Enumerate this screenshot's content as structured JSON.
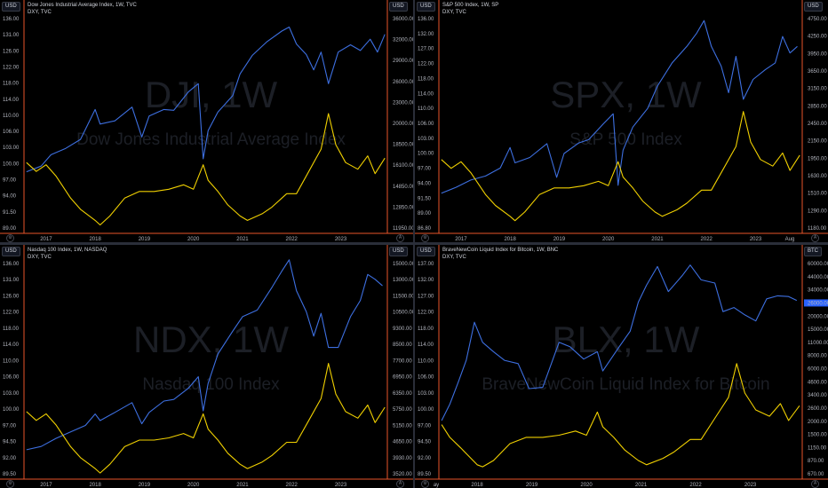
{
  "colors": {
    "primary": "#3d6fe0",
    "dxy": "#f0d000",
    "axis_border": "#e8552a",
    "tick_text": "#b2b5be",
    "watermark": "#1c1f26",
    "highlight_box": "#2962ff"
  },
  "usd_label": "USD",
  "chart_data": [
    {
      "type": "line",
      "title": "Dow Jones Industrial Average Index, 1W, TVC",
      "subtitle": "DXY, TVC",
      "watermark_big": "DJI, 1W",
      "watermark_small": "Dow Jones Industrial Average Index",
      "left_axis_label": "USD",
      "right_axis_label": "USD",
      "x_ticks": [
        "2017",
        "2018",
        "2019",
        "2020",
        "2021",
        "2022",
        "2023"
      ],
      "left_ticks": [
        "136.00",
        "131.00",
        "126.00",
        "122.00",
        "118.00",
        "114.00",
        "110.00",
        "106.00",
        "103.00",
        "100.00",
        "97.00",
        "94.00",
        "91.50",
        "89.00"
      ],
      "right_ticks": [
        "36000.00",
        "32000.00",
        "29000.00",
        "26000.00",
        "23000.00",
        "20000.00",
        "18500.00",
        "16100.00",
        "14850.00",
        "12850.00",
        "11950.00"
      ],
      "series": [
        {
          "name": "DJI",
          "scale": "right",
          "color": "#3d6fe0",
          "ylim": [
            11000,
            38000
          ],
          "x": [
            2016.6,
            2016.9,
            2017.1,
            2017.4,
            2017.7,
            2018.0,
            2018.1,
            2018.4,
            2018.75,
            2018.95,
            2019.1,
            2019.4,
            2019.6,
            2019.9,
            2020.1,
            2020.2,
            2020.3,
            2020.5,
            2020.8,
            2020.95,
            2021.2,
            2021.5,
            2021.8,
            2021.95,
            2022.1,
            2022.3,
            2022.45,
            2022.6,
            2022.75,
            2022.95,
            2023.2,
            2023.4,
            2023.6,
            2023.75,
            2023.9
          ],
          "values": [
            18400,
            19100,
            20500,
            21300,
            22400,
            26100,
            24300,
            24700,
            26400,
            22700,
            25300,
            26100,
            26000,
            28300,
            29300,
            20000,
            23500,
            25800,
            27800,
            30500,
            32800,
            34500,
            35800,
            36300,
            34200,
            32900,
            31000,
            33200,
            29300,
            33200,
            34100,
            33400,
            34800,
            33200,
            35400
          ]
        },
        {
          "name": "DXY",
          "scale": "left",
          "color": "#f0d000",
          "ylim": [
            87.5,
            136.5
          ],
          "x": [
            2016.6,
            2016.8,
            2017.0,
            2017.2,
            2017.5,
            2017.7,
            2018.0,
            2018.1,
            2018.3,
            2018.6,
            2018.9,
            2019.2,
            2019.5,
            2019.8,
            2020.0,
            2020.2,
            2020.3,
            2020.5,
            2020.7,
            2020.95,
            2021.1,
            2021.4,
            2021.6,
            2021.9,
            2022.1,
            2022.35,
            2022.6,
            2022.75,
            2022.9,
            2023.1,
            2023.35,
            2023.55,
            2023.7,
            2023.9
          ],
          "values": [
            103.0,
            101.0,
            102.5,
            100.0,
            95.0,
            92.5,
            90.0,
            89.0,
            91.0,
            95.0,
            96.5,
            96.5,
            97.0,
            98.0,
            97.0,
            102.5,
            99.0,
            96.5,
            93.5,
            91.0,
            90.0,
            91.5,
            93.0,
            96.0,
            96.0,
            101.0,
            106.0,
            114.0,
            107.0,
            103.0,
            101.5,
            104.5,
            100.5,
            104.0
          ]
        }
      ]
    },
    {
      "type": "line",
      "title": "S&P 500 Index, 1W, SP",
      "subtitle": "DXY, TVC",
      "watermark_big": "SPX, 1W",
      "watermark_small": "S&P 500 Index",
      "left_axis_label": "USD",
      "right_axis_label": "USD",
      "x_ticks": [
        "2017",
        "2018",
        "2019",
        "2020",
        "2021",
        "2022",
        "2023",
        "Aug"
      ],
      "left_ticks": [
        "136.00",
        "132.00",
        "127.00",
        "122.00",
        "118.00",
        "114.00",
        "110.00",
        "106.00",
        "103.00",
        "100.00",
        "97.00",
        "94.00",
        "91.50",
        "89.00",
        "86.80"
      ],
      "right_ticks": [
        "4750.00",
        "4250.00",
        "3950.00",
        "3650.00",
        "3150.00",
        "2850.00",
        "2450.00",
        "2150.00",
        "1950.00",
        "1630.00",
        "1510.00",
        "1290.00",
        "1180.00"
      ],
      "series": [
        {
          "name": "SPX",
          "scale": "right",
          "color": "#3d6fe0",
          "ylim": [
            1600,
            4900
          ],
          "x": [
            2016.6,
            2016.9,
            2017.2,
            2017.5,
            2017.8,
            2018.0,
            2018.1,
            2018.4,
            2018.75,
            2018.95,
            2019.1,
            2019.4,
            2019.6,
            2019.9,
            2020.1,
            2020.2,
            2020.3,
            2020.5,
            2020.8,
            2021.0,
            2021.3,
            2021.6,
            2021.8,
            2021.95,
            2022.1,
            2022.3,
            2022.45,
            2022.6,
            2022.75,
            2022.95,
            2023.2,
            2023.4,
            2023.55,
            2023.7,
            2023.85
          ],
          "values": [
            2180,
            2270,
            2380,
            2440,
            2560,
            2870,
            2640,
            2720,
            2930,
            2420,
            2780,
            2940,
            2990,
            3230,
            3380,
            2300,
            2830,
            3180,
            3460,
            3800,
            4150,
            4400,
            4600,
            4790,
            4400,
            4100,
            3700,
            4250,
            3600,
            3900,
            4050,
            4150,
            4550,
            4300,
            4400
          ]
        },
        {
          "name": "DXY",
          "scale": "left",
          "color": "#f0d000",
          "ylim": [
            86.5,
            136.5
          ],
          "x": [
            2016.6,
            2016.8,
            2017.0,
            2017.2,
            2017.5,
            2017.7,
            2018.0,
            2018.1,
            2018.3,
            2018.6,
            2018.9,
            2019.2,
            2019.5,
            2019.8,
            2020.0,
            2020.2,
            2020.3,
            2020.5,
            2020.7,
            2020.95,
            2021.1,
            2021.4,
            2021.6,
            2021.9,
            2022.1,
            2022.35,
            2022.6,
            2022.75,
            2022.9,
            2023.1,
            2023.35,
            2023.55,
            2023.7,
            2023.9
          ],
          "values": [
            103.0,
            101.0,
            102.5,
            100.0,
            95.0,
            92.5,
            90.0,
            89.0,
            91.0,
            95.0,
            96.5,
            96.5,
            97.0,
            98.0,
            97.0,
            102.5,
            99.0,
            96.5,
            93.5,
            91.0,
            90.0,
            91.5,
            93.0,
            96.0,
            96.0,
            101.0,
            106.0,
            114.0,
            107.0,
            103.0,
            101.5,
            104.5,
            100.5,
            104.0
          ]
        }
      ]
    },
    {
      "type": "line",
      "title": "Nasdaq 100 Index, 1W, NASDAQ",
      "subtitle": "DXY, TVC",
      "watermark_big": "NDX, 1W",
      "watermark_small": "Nasdaq 100 Index",
      "left_axis_label": "USD",
      "right_axis_label": "USD",
      "x_ticks": [
        "2017",
        "2018",
        "2019",
        "2020",
        "2021",
        "2022",
        "2023"
      ],
      "left_ticks": [
        "136.00",
        "131.00",
        "126.00",
        "122.00",
        "118.00",
        "114.00",
        "110.00",
        "106.00",
        "103.00",
        "100.00",
        "97.00",
        "94.50",
        "92.00",
        "89.50"
      ],
      "right_ticks": [
        "15000.00",
        "13000.00",
        "11500.00",
        "10500.00",
        "9300.00",
        "8500.00",
        "7700.00",
        "6950.00",
        "6350.00",
        "5750.00",
        "5150.00",
        "4650.00",
        "3930.00",
        "3520.00"
      ],
      "series": [
        {
          "name": "NDX",
          "scale": "right",
          "color": "#3d6fe0",
          "ylim": [
            3000,
            16500
          ],
          "x": [
            2016.6,
            2016.9,
            2017.2,
            2017.5,
            2017.8,
            2018.0,
            2018.1,
            2018.4,
            2018.75,
            2018.95,
            2019.1,
            2019.4,
            2019.6,
            2019.9,
            2020.1,
            2020.2,
            2020.3,
            2020.5,
            2020.8,
            2021.0,
            2021.3,
            2021.6,
            2021.8,
            2021.95,
            2022.1,
            2022.3,
            2022.45,
            2022.6,
            2022.75,
            2022.95,
            2023.2,
            2023.4,
            2023.55,
            2023.7,
            2023.85
          ],
          "values": [
            4700,
            4900,
            5400,
            5800,
            6200,
            6900,
            6500,
            7000,
            7600,
            6300,
            7000,
            7700,
            7800,
            8500,
            9200,
            7100,
            8800,
            10600,
            12000,
            12900,
            13300,
            14700,
            15700,
            16400,
            14500,
            13200,
            11700,
            13100,
            11000,
            11000,
            12900,
            13900,
            15500,
            15200,
            14800
          ]
        },
        {
          "name": "DXY",
          "scale": "left",
          "color": "#f0d000",
          "ylim": [
            88,
            138
          ],
          "x": [
            2016.6,
            2016.8,
            2017.0,
            2017.2,
            2017.5,
            2017.7,
            2018.0,
            2018.1,
            2018.3,
            2018.6,
            2018.9,
            2019.2,
            2019.5,
            2019.8,
            2020.0,
            2020.2,
            2020.3,
            2020.5,
            2020.7,
            2020.95,
            2021.1,
            2021.4,
            2021.6,
            2021.9,
            2022.1,
            2022.35,
            2022.6,
            2022.75,
            2022.9,
            2023.1,
            2023.35,
            2023.55,
            2023.7,
            2023.9
          ],
          "values": [
            103.0,
            101.0,
            102.5,
            100.0,
            95.0,
            92.5,
            90.0,
            89.0,
            91.0,
            95.0,
            96.5,
            96.5,
            97.0,
            98.0,
            97.0,
            102.5,
            99.0,
            96.5,
            93.5,
            91.0,
            90.0,
            91.5,
            93.0,
            96.0,
            96.0,
            101.0,
            106.0,
            114.0,
            107.0,
            103.0,
            101.5,
            104.5,
            100.5,
            104.0
          ]
        }
      ]
    },
    {
      "type": "line",
      "title": "BraveNewCoin Liquid Index for Bitcoin, 1W, BNC",
      "subtitle": "DXY, TVC",
      "watermark_big": "BLX, 1W",
      "watermark_small": "BraveNewCoin Liquid Index for Bitcoin",
      "left_axis_label": "USD",
      "right_axis_label": "BTC",
      "x_ticks": [
        "ay",
        "2018",
        "2019",
        "2020",
        "2021",
        "2022",
        "2023"
      ],
      "left_ticks": [
        "137.00",
        "132.00",
        "127.00",
        "122.00",
        "118.00",
        "114.00",
        "110.00",
        "106.00",
        "103.00",
        "100.00",
        "97.00",
        "94.50",
        "92.00",
        "89.50"
      ],
      "right_ticks": [
        "60000.00",
        "44000.00",
        "34000.00",
        "26000.00",
        "20000.00",
        "15000.00",
        "11000.00",
        "8000.00",
        "6000.00",
        "4600.00",
        "3400.00",
        "2600.00",
        "2000.00",
        "1500.00",
        "1150.00",
        "870.00",
        "670.00"
      ],
      "highlight_tick": "26000.00",
      "series": [
        {
          "name": "BLX",
          "scale": "right",
          "color": "#3d6fe0",
          "ylim": [
            500,
            70000
          ],
          "log": true,
          "x": [
            2017.35,
            2017.5,
            2017.65,
            2017.8,
            2017.95,
            2018.1,
            2018.3,
            2018.5,
            2018.75,
            2018.95,
            2019.2,
            2019.5,
            2019.7,
            2019.95,
            2020.2,
            2020.3,
            2020.6,
            2020.8,
            2020.95,
            2021.1,
            2021.3,
            2021.5,
            2021.75,
            2021.9,
            2022.1,
            2022.35,
            2022.5,
            2022.7,
            2022.9,
            2023.1,
            2023.3,
            2023.5,
            2023.7,
            2023.85
          ],
          "values": [
            1800,
            2600,
            4200,
            7000,
            16500,
            10500,
            8500,
            7000,
            6500,
            3700,
            3800,
            10500,
            9500,
            7200,
            8500,
            5500,
            9500,
            13500,
            26000,
            38000,
            58000,
            33000,
            47000,
            60000,
            43000,
            40000,
            21000,
            23000,
            19500,
            17000,
            28000,
            30000,
            29500,
            27000
          ]
        },
        {
          "name": "DXY",
          "scale": "left",
          "color": "#f0d000",
          "ylim": [
            87,
            139
          ],
          "x": [
            2017.35,
            2017.5,
            2017.7,
            2018.0,
            2018.1,
            2018.3,
            2018.6,
            2018.9,
            2019.2,
            2019.5,
            2019.8,
            2020.0,
            2020.2,
            2020.3,
            2020.5,
            2020.7,
            2020.95,
            2021.1,
            2021.4,
            2021.6,
            2021.9,
            2022.1,
            2022.35,
            2022.6,
            2022.75,
            2022.9,
            2023.1,
            2023.35,
            2023.55,
            2023.7,
            2023.9
          ],
          "values": [
            99.5,
            96.5,
            94.0,
            90.0,
            89.5,
            91.0,
            95.0,
            96.5,
            96.5,
            97.0,
            98.0,
            97.0,
            102.5,
            99.0,
            96.5,
            93.5,
            91.0,
            90.0,
            91.5,
            93.0,
            96.0,
            96.0,
            101.0,
            106.0,
            114.0,
            107.0,
            103.0,
            101.5,
            104.5,
            100.5,
            104.0
          ]
        }
      ]
    }
  ]
}
